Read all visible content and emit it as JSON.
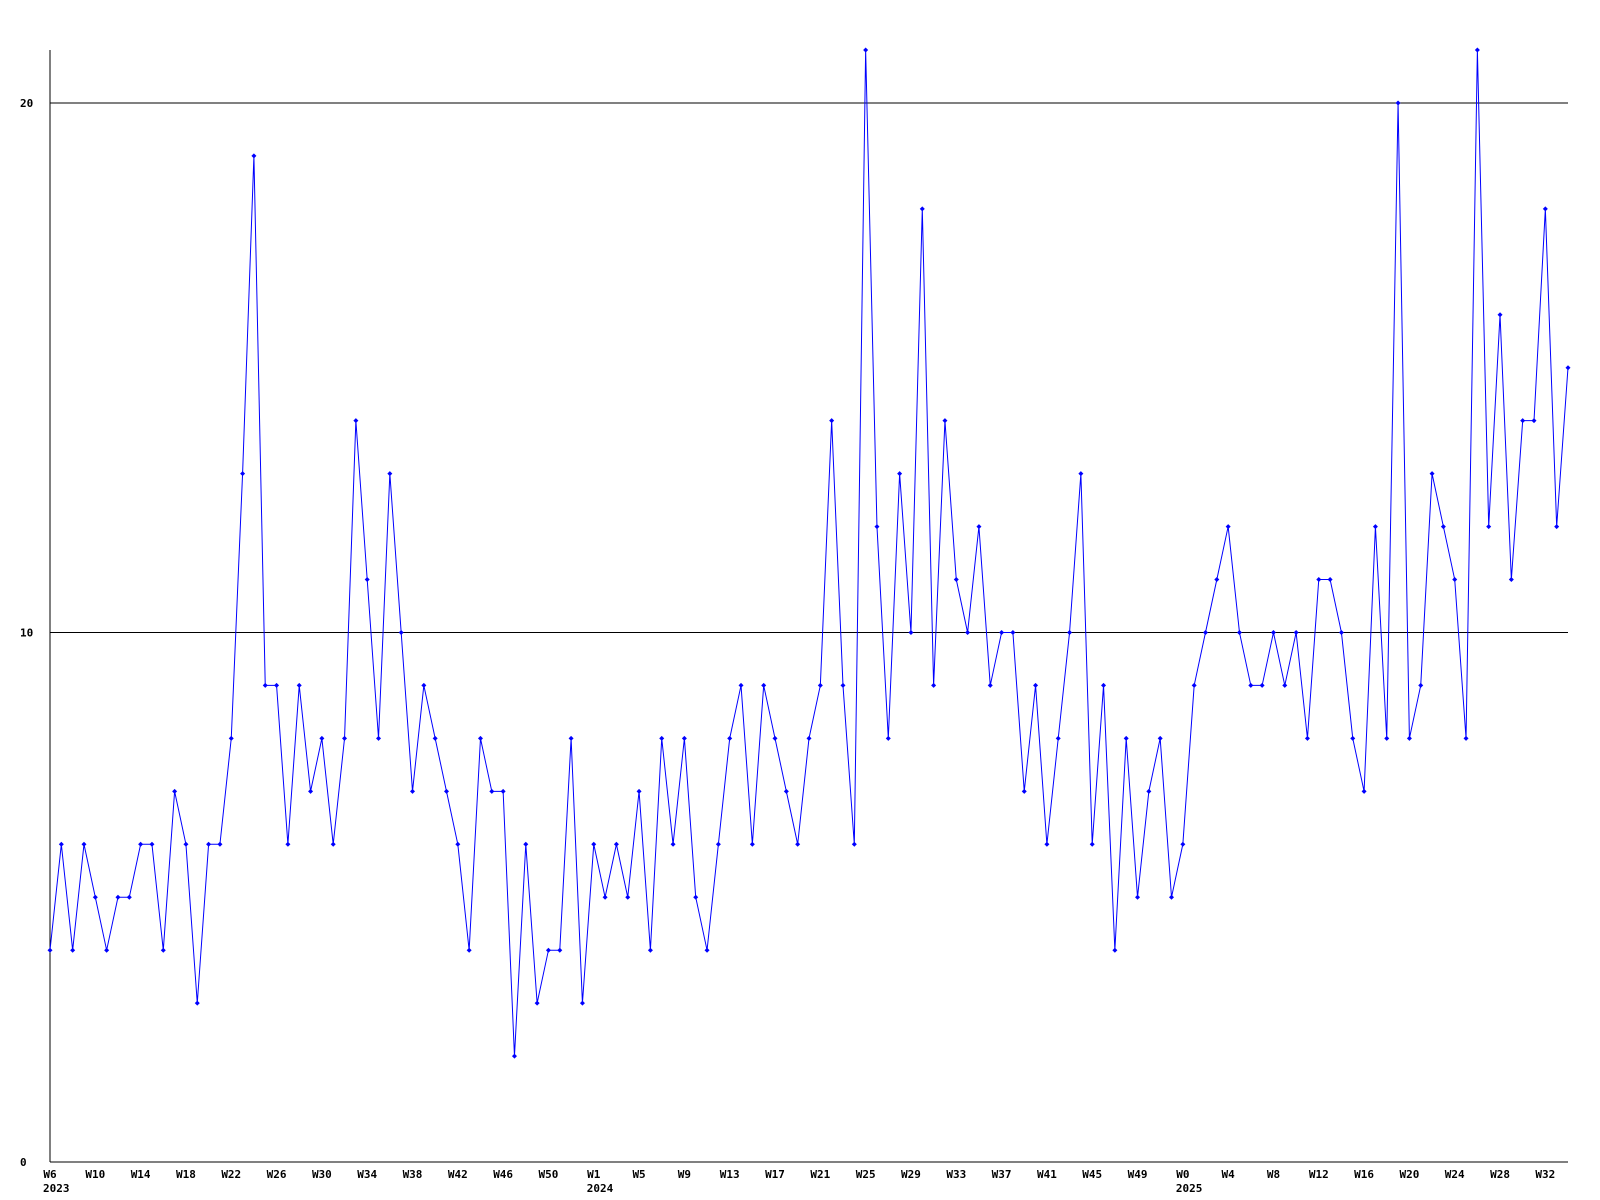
{
  "chart_data": {
    "type": "line",
    "categories": [
      "W6",
      null,
      null,
      null,
      "W10",
      null,
      null,
      null,
      "W14",
      null,
      null,
      null,
      "W18",
      null,
      null,
      null,
      "W22",
      null,
      null,
      null,
      "W26",
      null,
      null,
      null,
      "W30",
      null,
      null,
      null,
      "W34",
      null,
      null,
      null,
      "W38",
      null,
      null,
      null,
      "W42",
      null,
      null,
      null,
      "W46",
      null,
      null,
      null,
      "W50",
      null,
      null,
      null,
      "W1",
      null,
      null,
      null,
      "W5",
      null,
      null,
      null,
      "W9",
      null,
      null,
      null,
      "W13",
      null,
      null,
      null,
      "W17",
      null,
      null,
      null,
      "W21",
      null,
      null,
      null,
      "W25",
      null,
      null,
      null,
      "W29",
      null,
      null,
      null,
      "W33",
      null,
      null,
      null,
      "W37",
      null,
      null,
      null,
      "W41",
      null,
      null,
      null,
      "W45",
      null,
      null,
      null,
      "W49",
      null,
      null,
      null,
      "W0",
      null,
      null,
      null,
      "W4",
      null,
      null,
      null,
      "W8",
      null,
      null,
      null,
      "W12",
      null,
      null,
      null,
      "W16",
      null,
      null,
      null,
      "W20",
      null,
      null,
      null,
      "W24",
      null,
      null,
      null,
      "W28",
      null,
      null,
      null,
      "W32",
      null,
      null
    ],
    "year_labels": [
      "2023",
      null,
      null,
      null,
      null,
      null,
      null,
      null,
      null,
      null,
      null,
      null,
      null,
      null,
      null,
      null,
      null,
      null,
      null,
      null,
      null,
      null,
      null,
      null,
      null,
      null,
      null,
      null,
      null,
      null,
      null,
      null,
      null,
      null,
      null,
      null,
      null,
      null,
      null,
      null,
      null,
      null,
      null,
      null,
      null,
      null,
      null,
      null,
      "2024",
      null,
      null,
      null,
      null,
      null,
      null,
      null,
      null,
      null,
      null,
      null,
      null,
      null,
      null,
      null,
      null,
      null,
      null,
      null,
      null,
      null,
      null,
      null,
      null,
      null,
      null,
      null,
      null,
      null,
      null,
      null,
      null,
      null,
      null,
      null,
      null,
      null,
      null,
      null,
      null,
      null,
      null,
      null,
      null,
      null,
      null,
      null,
      null,
      null,
      null,
      null,
      "2025",
      null,
      null,
      null,
      null,
      null,
      null,
      null,
      null,
      null,
      null,
      null,
      null,
      null,
      null,
      null,
      null,
      null,
      null,
      null,
      null,
      null,
      null,
      null,
      null,
      null,
      null,
      null,
      null,
      null,
      null,
      null,
      null,
      null,
      null
    ],
    "values": [
      4,
      6,
      4,
      6,
      5,
      4,
      5,
      5,
      6,
      6,
      4,
      7,
      6,
      3,
      6,
      6,
      8,
      13,
      19,
      9,
      9,
      6,
      9,
      7,
      8,
      6,
      8,
      14,
      11,
      8,
      13,
      10,
      7,
      9,
      8,
      7,
      6,
      4,
      8,
      7,
      7,
      2,
      6,
      3,
      4,
      4,
      8,
      3,
      6,
      5,
      6,
      5,
      7,
      4,
      8,
      6,
      8,
      5,
      4,
      6,
      8,
      9,
      6,
      9,
      8,
      7,
      6,
      8,
      9,
      14,
      9,
      6,
      21,
      12,
      8,
      13,
      10,
      18,
      9,
      14,
      11,
      10,
      12,
      9,
      10,
      10,
      7,
      9,
      6,
      8,
      10,
      13,
      6,
      9,
      4,
      8,
      5,
      7,
      8,
      5,
      6,
      9,
      10,
      11,
      12,
      10,
      9,
      9,
      10,
      9,
      10,
      8,
      11,
      11,
      10,
      8,
      7,
      12,
      8,
      20,
      8,
      9,
      13,
      12,
      11,
      8,
      21,
      12,
      16,
      11,
      14,
      14,
      18,
      12,
      15
    ],
    "color": "#0000ff",
    "marker": "diamond",
    "ylim": [
      0,
      21
    ],
    "yticks": [
      0,
      10,
      20
    ],
    "grid": true
  }
}
